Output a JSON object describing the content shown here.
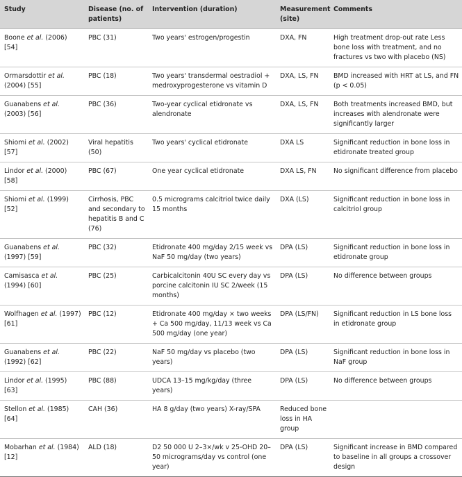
{
  "headers": [
    "Study",
    "Disease (no. of patients)",
    "Intervention (duration)",
    "Measurement (site)",
    "Comments"
  ],
  "rows": [
    {
      "author": "Boone",
      "etal": "et al.",
      "ref": "(2006) [54]",
      "disease": "PBC (31)",
      "intervention": "Two years' estrogen/progestin",
      "measurement": "DXA, FN",
      "comments": "High treatment drop-out rate Less bone loss with treatment, and no fractures vs two with placebo (NS)"
    },
    {
      "author": "Ormarsdottir",
      "etal": "et al.",
      "ref": "(2004) [55]",
      "disease": "PBC (18)",
      "intervention": "Two years' transdermal oestradiol + medroxyprogesterone vs vitamin D",
      "measurement": "DXA, LS, FN",
      "comments": "BMD increased with HRT at LS, and FN (p < 0.05)"
    },
    {
      "author": "Guanabens",
      "etal": "et al.",
      "ref": "(2003) [56]",
      "disease": "PBC (36)",
      "intervention": "Two-year cyclical etidronate vs alendronate",
      "measurement": "DXA, LS, FN",
      "comments": "Both treatments increased BMD, but increases with alendronate were significantly larger"
    },
    {
      "author": "Shiomi",
      "etal": "et al.",
      "ref": "(2002) [57]",
      "disease": "Viral hepatitis (50)",
      "intervention": "Two years' cyclical etidronate",
      "measurement": "DXA LS",
      "comments": "Significant reduction in bone loss in etidronate treated group"
    },
    {
      "author": "Lindor",
      "etal": "et al.",
      "ref": "(2000) [58]",
      "disease": "PBC (67)",
      "intervention": "One year cyclical etidronate",
      "measurement": "DXA LS, FN",
      "comments": "No significant difference from placebo"
    },
    {
      "author": "Shiomi",
      "etal": "et al.",
      "ref": "(1999) [52]",
      "disease": "Cirrhosis, PBC and secondary to hepatitis B and C (76)",
      "intervention": "0.5 micrograms calcitriol twice daily 15 months",
      "measurement": "DXA (LS)",
      "comments": "Significant reduction in bone loss in calcitriol group"
    },
    {
      "author": "Guanabens",
      "etal": "et al.",
      "ref": "(1997) [59]",
      "disease": "PBC (32)",
      "intervention": "Etidronate 400 mg/day 2/15 week vs NaF 50 mg/day (two years)",
      "measurement": "DPA (LS)",
      "comments": "Significant reduction in bone loss in etidronate group"
    },
    {
      "author": "Camisasca",
      "etal": "et al.",
      "ref": "(1994) [60]",
      "disease": "PBC (25)",
      "intervention": "Carbicalcitonin 40U SC every day vs porcine calcitonin IU SC 2/week (15 months)",
      "measurement": "DPA (LS)",
      "comments": "No difference between groups"
    },
    {
      "author": "Wolfhagen",
      "etal": "et al.",
      "ref": "(1997) [61]",
      "disease": "PBC (12)",
      "intervention": "Etidronate 400 mg/day × two weeks + Ca 500 mg/day, 11/13 week vs Ca 500 mg/day (one year)",
      "measurement": "DPA (LS/FN)",
      "comments": "Significant reduction in LS bone loss in etidronate group"
    },
    {
      "author": "Guanabens",
      "etal": "et al.",
      "ref": "(1992) [62]",
      "disease": "PBC (22)",
      "intervention": "NaF 50 mg/day vs placebo (two years)",
      "measurement": "DPA (LS)",
      "comments": "Significant reduction in bone loss in NaF group"
    },
    {
      "author": "Lindor",
      "etal": "et al.",
      "ref": "(1995) [63]",
      "disease": "PBC (88)",
      "intervention": "UDCA 13–15 mg/kg/day (three years)",
      "measurement": "DPA (LS)",
      "comments": "No difference between groups"
    },
    {
      "author": "Stellon",
      "etal": "et al.",
      "ref": "(1985) [64]",
      "disease": "CAH (36)",
      "intervention": "HA 8 g/day (two years) X-ray/SPA",
      "measurement": "Reduced bone loss in HA group",
      "comments": ""
    },
    {
      "author": "Mobarhan",
      "etal": "et al.",
      "ref": "(1984) [12]",
      "disease": "ALD (18)",
      "intervention": "D2 50 000 U 2–3×/wk v 25-OHD 20–50 micrograms/day vs control (one year)",
      "measurement": "DPA (LS)",
      "comments": "Significant increase in BMD compared to baseline in all groups a crossover design"
    }
  ]
}
